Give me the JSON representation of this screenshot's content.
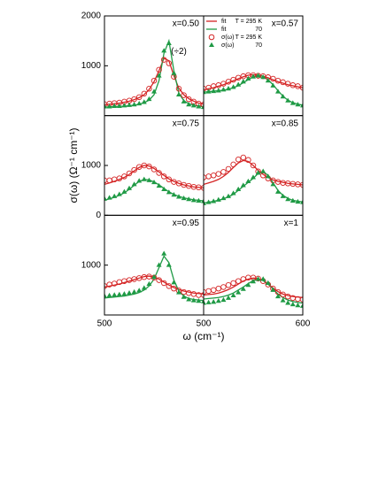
{
  "figure": {
    "ylabel": "σ(ω) (Ω⁻¹ cm⁻¹)",
    "xlabel": "ω (cm⁻¹)"
  },
  "chart_data": [
    {
      "type": "line",
      "label": "x=0.50",
      "xlim": [
        500,
        600
      ],
      "ylim": [
        0,
        2000
      ],
      "yticks": [
        1000,
        2000
      ],
      "annotations": [
        {
          "text": "(÷2)",
          "x": 575,
          "y": 1285
        }
      ],
      "x": [
        500,
        505,
        510,
        515,
        520,
        525,
        530,
        535,
        540,
        545,
        550,
        555,
        560,
        565,
        570,
        575,
        580,
        585,
        590,
        595,
        600
      ],
      "series": [
        {
          "color": "#d42424",
          "marker": "none",
          "values": [
            220,
            230,
            240,
            250,
            270,
            290,
            320,
            360,
            420,
            520,
            680,
            900,
            1150,
            1100,
            800,
            550,
            420,
            340,
            290,
            250,
            230
          ]
        },
        {
          "color": "#1f9a45",
          "marker": "none",
          "values": [
            170,
            175,
            180,
            185,
            190,
            200,
            210,
            230,
            260,
            310,
            420,
            700,
            1250,
            1500,
            900,
            450,
            300,
            240,
            210,
            190,
            180
          ]
        },
        {
          "color": "#d42424",
          "marker": "circle",
          "values": [
            230,
            240,
            250,
            260,
            280,
            300,
            330,
            370,
            440,
            540,
            700,
            920,
            1120,
            1050,
            780,
            540,
            410,
            330,
            280,
            240,
            220
          ]
        },
        {
          "color": "#1f9a45",
          "marker": "triangle",
          "values": [
            180,
            180,
            190,
            190,
            200,
            210,
            220,
            240,
            270,
            330,
            480,
            800,
            1300,
            1450,
            850,
            420,
            280,
            220,
            200,
            180,
            170
          ]
        }
      ]
    },
    {
      "type": "line",
      "label": "x=0.57",
      "xlim": [
        500,
        600
      ],
      "ylim": [
        0,
        2000
      ],
      "legend": true,
      "x": [
        500,
        505,
        510,
        515,
        520,
        525,
        530,
        535,
        540,
        545,
        550,
        555,
        560,
        565,
        570,
        575,
        580,
        585,
        590,
        595,
        600
      ],
      "series": [
        {
          "name": "fit",
          "temperature": "T = 295 K",
          "color": "#d42424",
          "marker": "none",
          "values": [
            520,
            540,
            560,
            590,
            620,
            660,
            700,
            740,
            780,
            810,
            820,
            810,
            790,
            760,
            720,
            680,
            650,
            620,
            600,
            580,
            560
          ]
        },
        {
          "name": "fit",
          "temperature": "70",
          "color": "#1f9a45",
          "marker": "none",
          "values": [
            470,
            480,
            490,
            500,
            510,
            530,
            560,
            600,
            660,
            720,
            780,
            800,
            790,
            720,
            620,
            500,
            390,
            310,
            260,
            230,
            210
          ]
        },
        {
          "name": "σ(ω)",
          "temperature": "T = 295 K",
          "color": "#d42424",
          "marker": "circle",
          "values": [
            540,
            560,
            590,
            610,
            640,
            680,
            720,
            760,
            790,
            810,
            810,
            800,
            790,
            770,
            740,
            700,
            670,
            640,
            610,
            590,
            560
          ]
        },
        {
          "name": "σ(ω)",
          "temperature": "70",
          "color": "#1f9a45",
          "marker": "triangle",
          "values": [
            470,
            480,
            490,
            500,
            520,
            540,
            570,
            620,
            680,
            740,
            780,
            800,
            770,
            700,
            600,
            480,
            380,
            300,
            250,
            220,
            200
          ]
        }
      ]
    },
    {
      "type": "line",
      "label": "x=0.75",
      "xlim": [
        500,
        600
      ],
      "ylim": [
        0,
        2000
      ],
      "yticks": [
        0,
        1000
      ],
      "x": [
        500,
        505,
        510,
        515,
        520,
        525,
        530,
        535,
        540,
        545,
        550,
        555,
        560,
        565,
        570,
        575,
        580,
        585,
        590,
        595,
        600
      ],
      "series": [
        {
          "color": "#d42424",
          "marker": "none",
          "values": [
            620,
            650,
            680,
            720,
            760,
            820,
            890,
            960,
            1000,
            990,
            940,
            870,
            800,
            730,
            680,
            640,
            610,
            590,
            570,
            560,
            550
          ]
        },
        {
          "color": "#1f9a45",
          "marker": "none",
          "values": [
            300,
            330,
            360,
            400,
            450,
            520,
            600,
            680,
            720,
            710,
            670,
            610,
            540,
            470,
            420,
            380,
            350,
            330,
            310,
            300,
            290
          ]
        },
        {
          "color": "#d42424",
          "marker": "circle",
          "values": [
            700,
            700,
            720,
            740,
            780,
            840,
            910,
            970,
            1000,
            980,
            920,
            850,
            780,
            720,
            670,
            640,
            610,
            590,
            570,
            560,
            550
          ]
        },
        {
          "color": "#1f9a45",
          "marker": "triangle",
          "values": [
            330,
            350,
            380,
            420,
            470,
            540,
            620,
            690,
            720,
            700,
            660,
            590,
            520,
            460,
            410,
            370,
            340,
            320,
            300,
            290,
            280
          ]
        }
      ]
    },
    {
      "type": "line",
      "label": "x=0.85",
      "xlim": [
        500,
        600
      ],
      "ylim": [
        0,
        2000
      ],
      "x": [
        500,
        505,
        510,
        515,
        520,
        525,
        530,
        535,
        540,
        545,
        550,
        555,
        560,
        565,
        570,
        575,
        580,
        585,
        590,
        595,
        600
      ],
      "series": [
        {
          "color": "#d42424",
          "marker": "none",
          "values": [
            620,
            650,
            680,
            720,
            780,
            860,
            960,
            1050,
            1100,
            1080,
            1000,
            900,
            820,
            760,
            710,
            680,
            660,
            640,
            630,
            620,
            610
          ]
        },
        {
          "color": "#1f9a45",
          "marker": "none",
          "values": [
            250,
            260,
            280,
            300,
            330,
            370,
            420,
            500,
            580,
            660,
            740,
            840,
            880,
            800,
            650,
            500,
            400,
            340,
            300,
            280,
            270
          ]
        },
        {
          "color": "#d42424",
          "marker": "circle",
          "values": [
            760,
            780,
            800,
            830,
            870,
            930,
            1020,
            1120,
            1160,
            1110,
            1000,
            880,
            800,
            740,
            700,
            670,
            650,
            640,
            630,
            620,
            610
          ]
        },
        {
          "color": "#1f9a45",
          "marker": "triangle",
          "values": [
            240,
            260,
            280,
            310,
            340,
            380,
            440,
            520,
            600,
            680,
            760,
            850,
            880,
            780,
            620,
            470,
            380,
            320,
            290,
            270,
            260
          ]
        }
      ]
    },
    {
      "type": "line",
      "label": "x=0.95",
      "xlim": [
        500,
        600
      ],
      "ylim": [
        0,
        2000
      ],
      "yticks": [
        1000
      ],
      "xticks": [
        500
      ],
      "x": [
        500,
        505,
        510,
        515,
        520,
        525,
        530,
        535,
        540,
        545,
        550,
        555,
        560,
        565,
        570,
        575,
        580,
        585,
        590,
        595,
        600
      ],
      "series": [
        {
          "color": "#d42424",
          "marker": "none",
          "values": [
            560,
            580,
            600,
            620,
            650,
            680,
            710,
            740,
            770,
            780,
            760,
            720,
            660,
            600,
            550,
            510,
            480,
            460,
            440,
            430,
            420
          ]
        },
        {
          "color": "#1f9a45",
          "marker": "none",
          "values": [
            340,
            350,
            360,
            370,
            380,
            400,
            420,
            450,
            500,
            580,
            720,
            950,
            1180,
            1050,
            700,
            480,
            380,
            330,
            310,
            300,
            290
          ]
        },
        {
          "color": "#d42424",
          "marker": "circle",
          "values": [
            580,
            610,
            630,
            660,
            680,
            700,
            720,
            740,
            760,
            770,
            750,
            700,
            640,
            580,
            530,
            490,
            460,
            440,
            420,
            400,
            400
          ]
        },
        {
          "color": "#1f9a45",
          "marker": "triangle",
          "values": [
            380,
            390,
            400,
            410,
            420,
            440,
            460,
            490,
            540,
            620,
            760,
            1000,
            1230,
            1000,
            650,
            450,
            360,
            310,
            290,
            280,
            270
          ]
        }
      ]
    },
    {
      "type": "line",
      "label": "x=1",
      "xlim": [
        500,
        600
      ],
      "ylim": [
        0,
        2000
      ],
      "xticks": [
        500,
        600
      ],
      "x": [
        500,
        505,
        510,
        515,
        520,
        525,
        530,
        535,
        540,
        545,
        550,
        555,
        560,
        565,
        570,
        575,
        580,
        585,
        590,
        595,
        600
      ],
      "series": [
        {
          "color": "#d42424",
          "marker": "none",
          "values": [
            400,
            410,
            420,
            440,
            470,
            510,
            560,
            620,
            680,
            720,
            740,
            730,
            690,
            620,
            540,
            470,
            420,
            390,
            370,
            360,
            350
          ]
        },
        {
          "color": "#1f9a45",
          "marker": "none",
          "values": [
            320,
            330,
            340,
            350,
            370,
            400,
            440,
            500,
            560,
            630,
            690,
            710,
            690,
            620,
            520,
            420,
            350,
            300,
            270,
            250,
            240
          ]
        },
        {
          "color": "#d42424",
          "marker": "circle",
          "values": [
            460,
            480,
            500,
            530,
            560,
            600,
            640,
            680,
            720,
            750,
            750,
            730,
            680,
            610,
            530,
            460,
            410,
            370,
            340,
            320,
            310
          ]
        },
        {
          "color": "#1f9a45",
          "marker": "triangle",
          "values": [
            240,
            250,
            260,
            280,
            300,
            340,
            390,
            450,
            520,
            600,
            670,
            720,
            720,
            640,
            500,
            370,
            290,
            240,
            210,
            190,
            180
          ]
        }
      ]
    }
  ]
}
